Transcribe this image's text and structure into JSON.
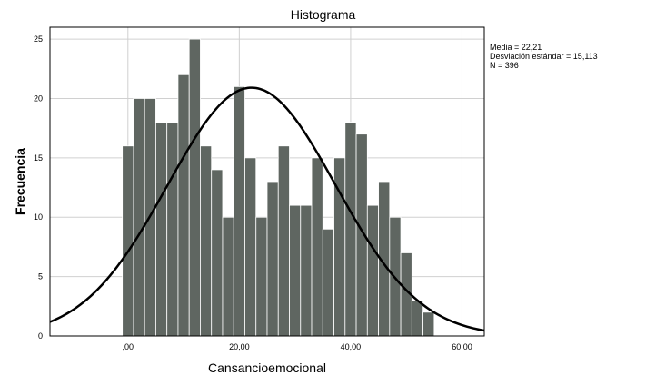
{
  "chart_data": {
    "type": "bar",
    "title": "Histograma",
    "xlabel": "Cansancioemocional",
    "ylabel": "Frecuencia",
    "xlim": [
      -14,
      64
    ],
    "ylim": [
      0,
      26
    ],
    "xticks": [
      0,
      20,
      40,
      60
    ],
    "xtick_labels": [
      ",00",
      "20,00",
      "40,00",
      "60,00"
    ],
    "yticks": [
      0,
      5,
      10,
      15,
      20,
      25
    ],
    "ytick_labels": [
      "0",
      "5",
      "10",
      "15",
      "20",
      "25"
    ],
    "grid": true,
    "bin_start": -1,
    "bin_width": 2,
    "values": [
      16,
      20,
      20,
      18,
      18,
      22,
      25,
      16,
      14,
      10,
      21,
      15,
      10,
      13,
      16,
      11,
      11,
      15,
      9,
      15,
      18,
      17,
      11,
      13,
      10,
      7,
      3,
      2
    ],
    "bar_color": "#5f6661",
    "normal_curve": {
      "mean": 22.21,
      "sd": 15.113,
      "n": 396
    },
    "stats_labels": [
      "Media = 22,21",
      "Desviación estándar = 15,113",
      "N = 396"
    ]
  }
}
